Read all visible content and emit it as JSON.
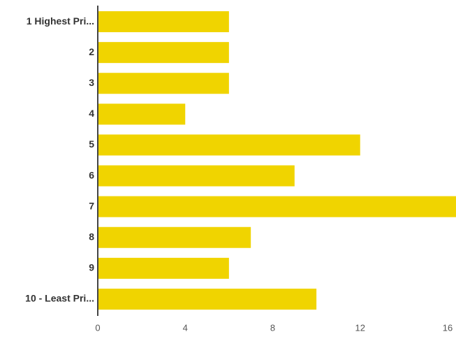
{
  "chart_data": {
    "type": "bar",
    "orientation": "horizontal",
    "categories": [
      "1 Highest Pri...",
      "2",
      "3",
      "4",
      "5",
      "6",
      "7",
      "8",
      "9",
      "10 - Least Pri..."
    ],
    "values": [
      6,
      6,
      6,
      4,
      12,
      9,
      17,
      7,
      6,
      10
    ],
    "color": "#f0d400",
    "xlim": [
      0,
      16
    ],
    "xticks": [
      0,
      4,
      8,
      12,
      16
    ],
    "grid": false
  }
}
